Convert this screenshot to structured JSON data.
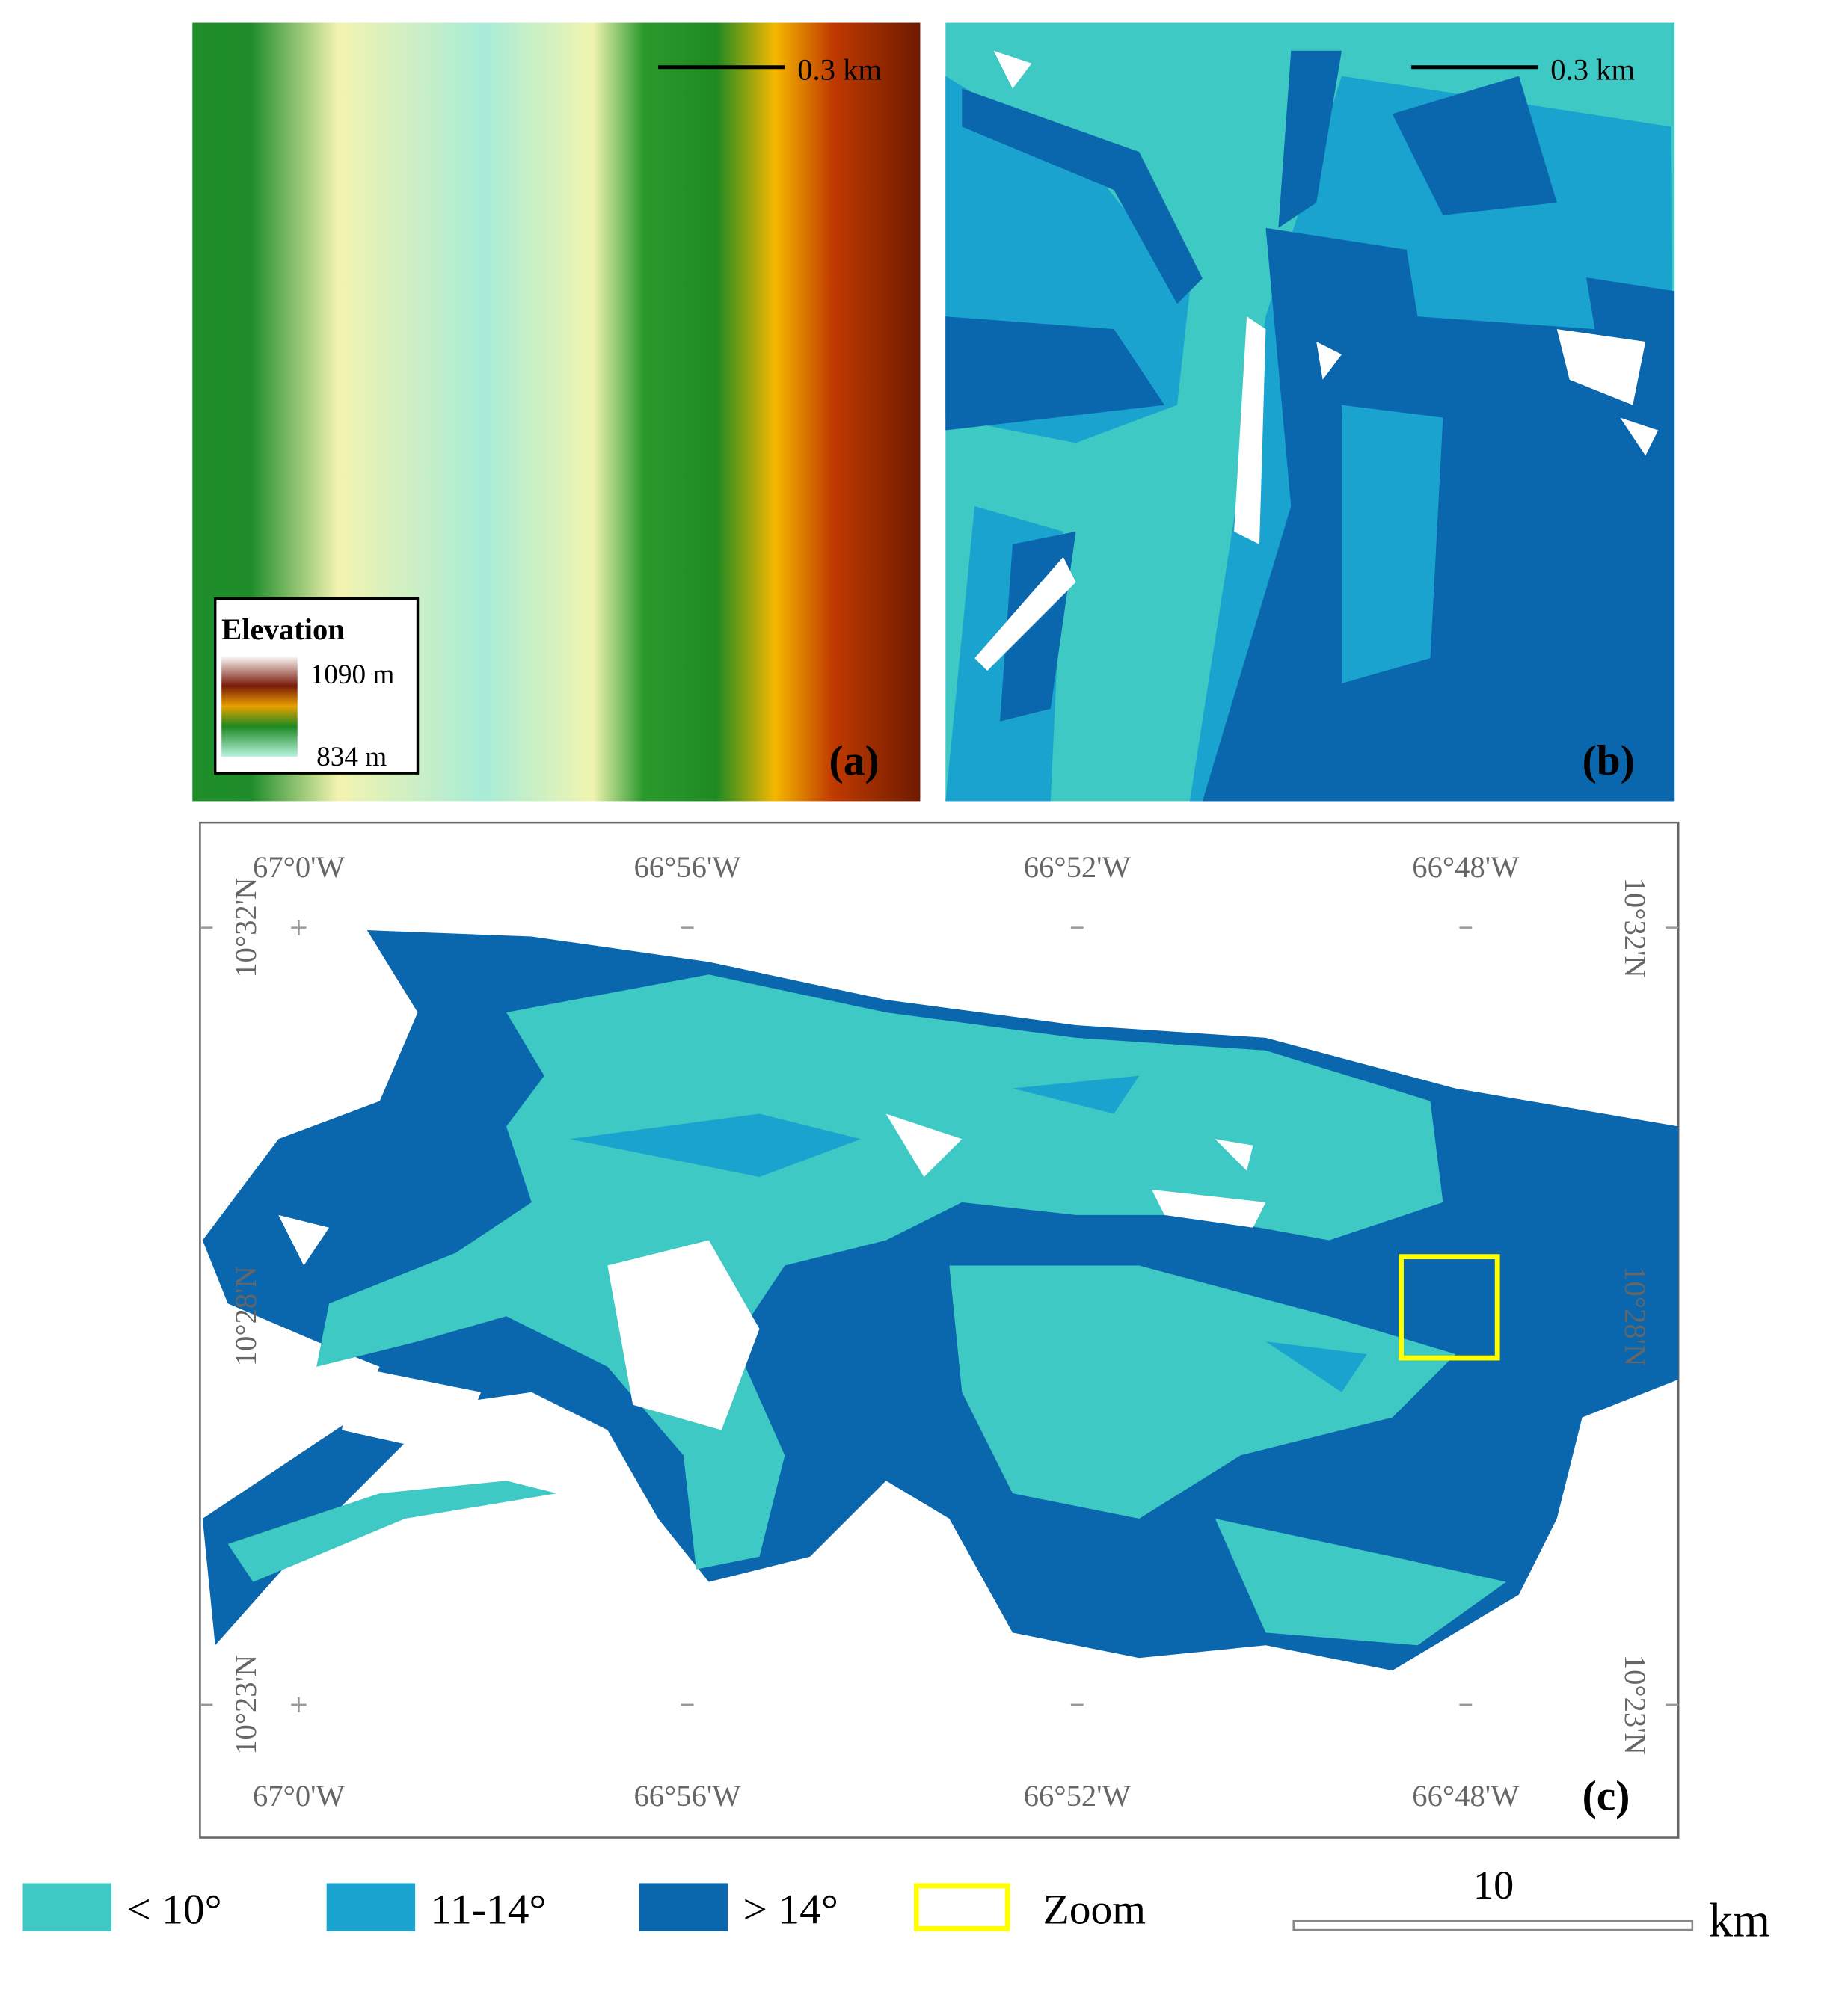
{
  "panels": [
    {
      "scale_bar": "0.3 km",
      "legend": {
        "title": "Elevation",
        "max": "1090 m",
        "min": "834 m"
      },
      "label": "(a)"
    },
    {
      "scale_bar": "0.3 km",
      "label": "(b)"
    }
  ],
  "map": {
    "lon_labels": [
      "67°0'W",
      "66°56'W",
      "66°52'W",
      "66°48'W"
    ],
    "lat_labels": [
      "10°32'N",
      "10°28'N",
      "10°23'N"
    ],
    "label": "(c)"
  },
  "legend": [
    {
      "label": "< 10°",
      "color": "#3ec9c4"
    },
    {
      "label": "11-14°",
      "color": "#1ba3cf"
    },
    {
      "label": "> 14°",
      "color": "#0a66ad"
    },
    {
      "label": "Zoom",
      "color": "#ffff00"
    }
  ],
  "scale_bar": {
    "value": "10",
    "unit": "km"
  }
}
